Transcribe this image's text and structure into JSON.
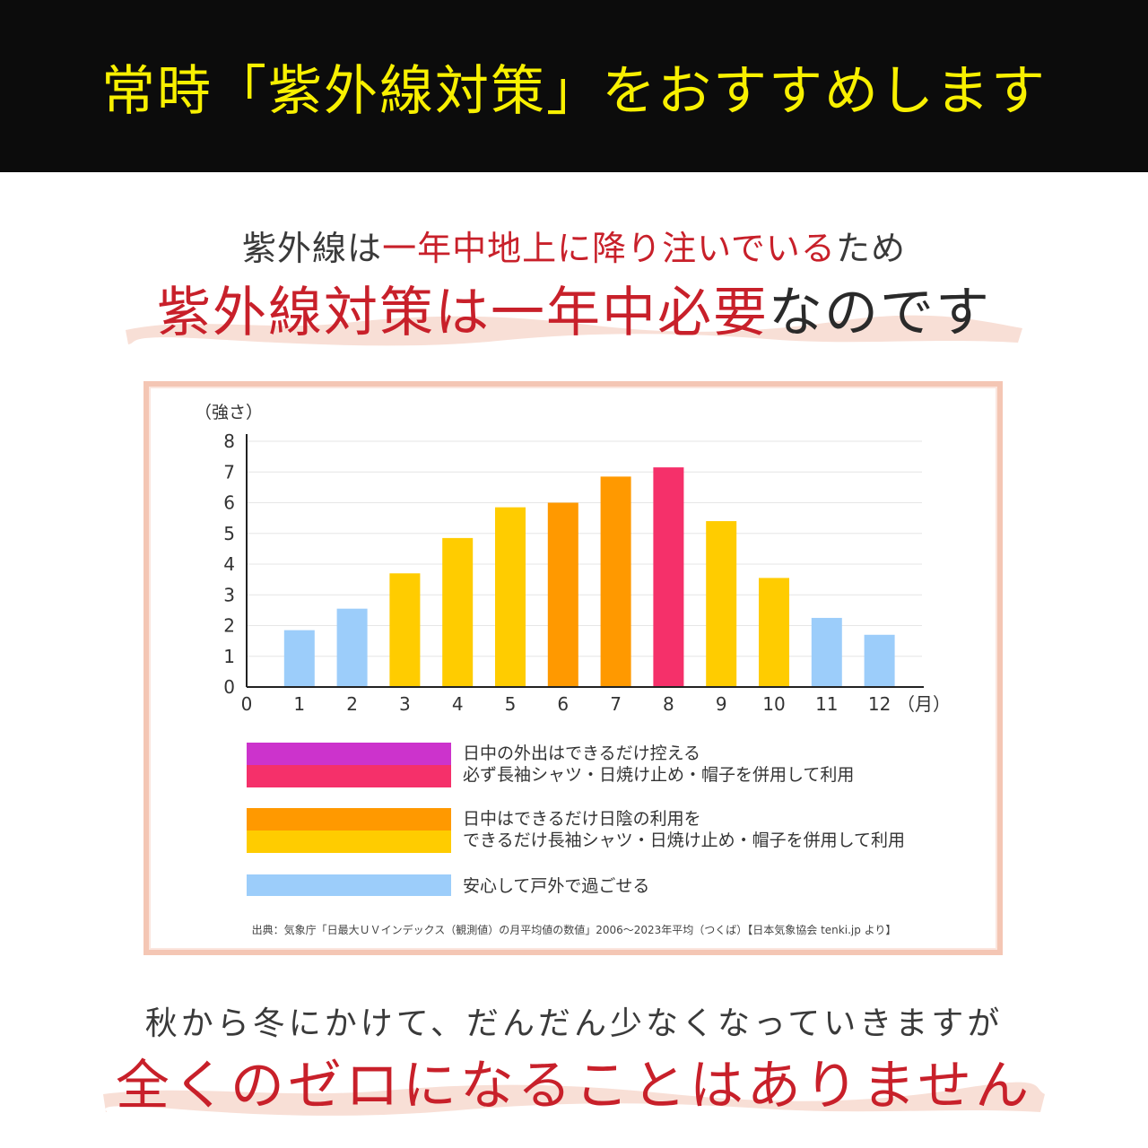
{
  "header": {
    "title": "常時「紫外線対策」をおすすめします"
  },
  "intro": {
    "line1_prefix": "紫外線は",
    "line1_highlight": "一年中地上に降り注いでいる",
    "line1_suffix": "ため",
    "line2_highlight": "紫外線対策は一年中必要",
    "line2_suffix": "なのです"
  },
  "outro": {
    "line1": "秋から冬にかけて、だんだん少なくなっていきますが",
    "line2": "全くのゼロになることはありません"
  },
  "colors": {
    "header_bg": "#0c0c0c",
    "header_text": "#f8f000",
    "accent_red": "#c8202a",
    "frame_border": "#f4c6b4",
    "brush": "#f7d9cf",
    "bar_light_blue": "#9ccdfa",
    "bar_yellow": "#ffcc00",
    "bar_orange": "#ff9900",
    "bar_pink": "#f5306a",
    "bar_purple": "#cc33cc"
  },
  "chart_data": {
    "type": "bar",
    "ylabel": "（強さ）",
    "xunit": "（月）",
    "x_origin_label": "0",
    "categories": [
      "1",
      "2",
      "3",
      "4",
      "5",
      "6",
      "7",
      "8",
      "9",
      "10",
      "11",
      "12"
    ],
    "values": [
      1.85,
      2.55,
      3.7,
      4.85,
      5.85,
      6.0,
      6.85,
      7.15,
      5.4,
      3.55,
      2.25,
      1.7
    ],
    "bar_colors": [
      "#9ccdfa",
      "#9ccdfa",
      "#ffcc00",
      "#ffcc00",
      "#ffcc00",
      "#ff9900",
      "#ff9900",
      "#f5306a",
      "#ffcc00",
      "#ffcc00",
      "#9ccdfa",
      "#9ccdfa"
    ],
    "ylim": [
      0,
      8
    ],
    "yticks": [
      "0",
      "1",
      "2",
      "3",
      "4",
      "5",
      "6",
      "7",
      "8"
    ],
    "grid": true,
    "source": "出典：気象庁「日最大ＵＶインデックス（観測値）の月平均値の数値」2006～2023年平均（つくば）【日本気象協会 tenki.jp より】"
  },
  "legend": [
    {
      "colors": [
        "#cc33cc",
        "#f5306a"
      ],
      "line1": "日中の外出はできるだけ控える",
      "line2": "必ず長袖シャツ・日焼け止め・帽子を併用して利用"
    },
    {
      "colors": [
        "#ff9900",
        "#ffcc00"
      ],
      "line1": "日中はできるだけ日陰の利用を",
      "line2": "できるだけ長袖シャツ・日焼け止め・帽子を併用して利用"
    },
    {
      "colors": [
        "#9ccdfa"
      ],
      "line1": "安心して戸外で過ごせる",
      "line2": ""
    }
  ]
}
